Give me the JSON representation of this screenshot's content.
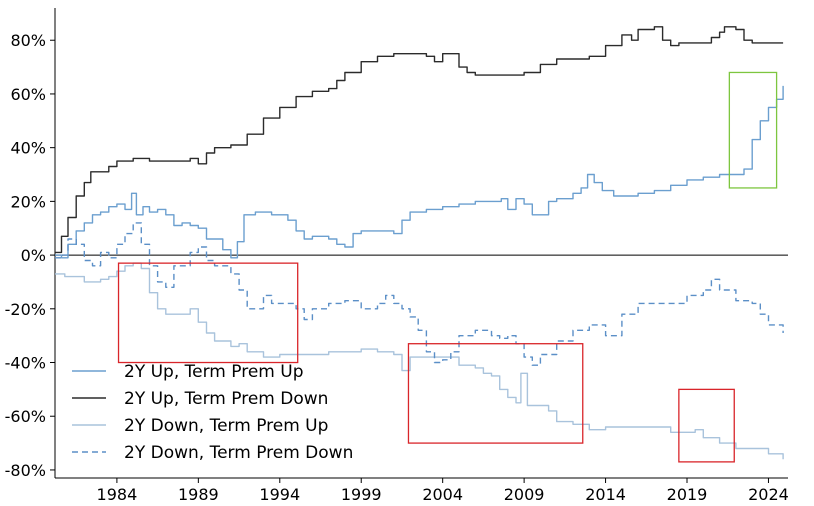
{
  "chart_data": {
    "type": "line",
    "title": "",
    "xlabel": "",
    "ylabel": "",
    "xlim": [
      1980.2,
      2025.2
    ],
    "ylim": [
      -83,
      92
    ],
    "x_ticks": [
      1984,
      1989,
      1994,
      1999,
      2004,
      2009,
      2014,
      2019,
      2024
    ],
    "y_ticks": [
      80,
      60,
      40,
      20,
      0,
      -20,
      -40,
      -60,
      -80
    ],
    "y_tick_labels": [
      "80%",
      "60%",
      "40%",
      "20%",
      "0%",
      "-20%",
      "-40%",
      "-60%",
      "-80%"
    ],
    "grid": false,
    "legend_position": "lower-left",
    "zero_line": 0,
    "series": [
      {
        "name": "2Y Up, Term Prem Up",
        "color": "#6b9fcf",
        "dash": "solid",
        "width": 1.4,
        "points": [
          [
            1980.2,
            0
          ],
          [
            1980.6,
            -1
          ],
          [
            1981,
            4
          ],
          [
            1981.5,
            9
          ],
          [
            1982,
            12
          ],
          [
            1982.5,
            15
          ],
          [
            1983,
            16
          ],
          [
            1983.5,
            18
          ],
          [
            1984,
            19
          ],
          [
            1984.5,
            17
          ],
          [
            1984.9,
            23
          ],
          [
            1985.2,
            15
          ],
          [
            1985.6,
            18
          ],
          [
            1986,
            16
          ],
          [
            1986.5,
            17
          ],
          [
            1987,
            15
          ],
          [
            1987.5,
            11
          ],
          [
            1988,
            12
          ],
          [
            1988.5,
            11
          ],
          [
            1989,
            10
          ],
          [
            1989.5,
            6
          ],
          [
            1990,
            6
          ],
          [
            1990.5,
            2
          ],
          [
            1991,
            -1
          ],
          [
            1991.4,
            5
          ],
          [
            1991.8,
            15
          ],
          [
            1992.5,
            16
          ],
          [
            1993.5,
            15
          ],
          [
            1994.5,
            13
          ],
          [
            1995,
            9
          ],
          [
            1995.5,
            6
          ],
          [
            1996,
            7
          ],
          [
            1997,
            6
          ],
          [
            1997.5,
            4
          ],
          [
            1998,
            3
          ],
          [
            1998.5,
            8
          ],
          [
            1999,
            9
          ],
          [
            2000,
            9
          ],
          [
            2001,
            8
          ],
          [
            2001.5,
            13
          ],
          [
            2002,
            16
          ],
          [
            2003,
            17
          ],
          [
            2004,
            18
          ],
          [
            2005,
            19
          ],
          [
            2006,
            20
          ],
          [
            2007,
            20
          ],
          [
            2007.6,
            21
          ],
          [
            2008,
            17
          ],
          [
            2008.5,
            21
          ],
          [
            2009,
            19
          ],
          [
            2009.5,
            15
          ],
          [
            2010,
            15
          ],
          [
            2010.5,
            20
          ],
          [
            2011,
            21
          ],
          [
            2012,
            23
          ],
          [
            2012.5,
            25
          ],
          [
            2012.9,
            30
          ],
          [
            2013.3,
            27
          ],
          [
            2013.8,
            24
          ],
          [
            2014.5,
            22
          ],
          [
            2015.5,
            22
          ],
          [
            2016,
            23
          ],
          [
            2017,
            24
          ],
          [
            2018,
            26
          ],
          [
            2019,
            28
          ],
          [
            2020,
            29
          ],
          [
            2021,
            30
          ],
          [
            2022,
            30
          ],
          [
            2022.5,
            32
          ],
          [
            2023,
            43
          ],
          [
            2023.5,
            50
          ],
          [
            2024,
            55
          ],
          [
            2024.5,
            58
          ],
          [
            2024.9,
            63
          ]
        ]
      },
      {
        "name": "2Y Up, Term Prem Down",
        "color": "#2b2b2b",
        "dash": "solid",
        "width": 1.4,
        "points": [
          [
            1980.2,
            1
          ],
          [
            1980.6,
            7
          ],
          [
            1981,
            14
          ],
          [
            1981.5,
            22
          ],
          [
            1982,
            27
          ],
          [
            1982.4,
            31
          ],
          [
            1983,
            31
          ],
          [
            1983.5,
            33
          ],
          [
            1984,
            35
          ],
          [
            1985,
            36
          ],
          [
            1986,
            35
          ],
          [
            1987,
            35
          ],
          [
            1988,
            35
          ],
          [
            1988.5,
            36
          ],
          [
            1989,
            34
          ],
          [
            1989.5,
            38
          ],
          [
            1990,
            40
          ],
          [
            1991,
            41
          ],
          [
            1992,
            45
          ],
          [
            1993,
            51
          ],
          [
            1994,
            55
          ],
          [
            1995,
            59
          ],
          [
            1996,
            61
          ],
          [
            1997,
            62
          ],
          [
            1997.5,
            65
          ],
          [
            1998,
            68
          ],
          [
            1999,
            72
          ],
          [
            2000,
            74
          ],
          [
            2001,
            75
          ],
          [
            2002,
            75
          ],
          [
            2003,
            74
          ],
          [
            2003.5,
            72
          ],
          [
            2004,
            75
          ],
          [
            2005,
            70
          ],
          [
            2005.5,
            68
          ],
          [
            2006,
            67
          ],
          [
            2007,
            67
          ],
          [
            2008,
            67
          ],
          [
            2009,
            68
          ],
          [
            2010,
            71
          ],
          [
            2011,
            73
          ],
          [
            2012,
            73
          ],
          [
            2013,
            74
          ],
          [
            2014,
            78
          ],
          [
            2015,
            82
          ],
          [
            2015.6,
            80
          ],
          [
            2016,
            84
          ],
          [
            2017,
            85
          ],
          [
            2017.5,
            80
          ],
          [
            2018,
            78
          ],
          [
            2018.5,
            79
          ],
          [
            2019,
            79
          ],
          [
            2020,
            79
          ],
          [
            2020.5,
            81
          ],
          [
            2021,
            83
          ],
          [
            2021.3,
            85
          ],
          [
            2022,
            84
          ],
          [
            2022.5,
            80
          ],
          [
            2023,
            79
          ],
          [
            2024,
            79
          ],
          [
            2024.9,
            79
          ]
        ]
      },
      {
        "name": "2Y Down, Term Prem Up",
        "color": "#a9c3dc",
        "dash": "solid",
        "width": 1.4,
        "points": [
          [
            1980.2,
            -7
          ],
          [
            1980.8,
            -8
          ],
          [
            1981.5,
            -8
          ],
          [
            1982,
            -10
          ],
          [
            1983,
            -9
          ],
          [
            1983.5,
            -8
          ],
          [
            1984,
            -6
          ],
          [
            1984.5,
            -4
          ],
          [
            1985,
            -3
          ],
          [
            1985.5,
            -5
          ],
          [
            1986,
            -14
          ],
          [
            1986.5,
            -20
          ],
          [
            1987,
            -22
          ],
          [
            1988,
            -22
          ],
          [
            1988.5,
            -20
          ],
          [
            1989,
            -25
          ],
          [
            1989.5,
            -29
          ],
          [
            1990,
            -32
          ],
          [
            1991,
            -34
          ],
          [
            1991.5,
            -33
          ],
          [
            1992,
            -36
          ],
          [
            1993,
            -38
          ],
          [
            1994,
            -37
          ],
          [
            1995,
            -37
          ],
          [
            1996,
            -37
          ],
          [
            1997,
            -36
          ],
          [
            1998,
            -36
          ],
          [
            1999,
            -35
          ],
          [
            2000,
            -36
          ],
          [
            2001,
            -37
          ],
          [
            2001.5,
            -43
          ],
          [
            2002,
            -38
          ],
          [
            2003,
            -38
          ],
          [
            2004,
            -38
          ],
          [
            2005,
            -41
          ],
          [
            2006,
            -42
          ],
          [
            2006.5,
            -44
          ],
          [
            2007,
            -45
          ],
          [
            2007.5,
            -50
          ],
          [
            2008,
            -53
          ],
          [
            2008.5,
            -55
          ],
          [
            2008.8,
            -44
          ],
          [
            2009.2,
            -56
          ],
          [
            2010,
            -56
          ],
          [
            2010.5,
            -58
          ],
          [
            2011,
            -62
          ],
          [
            2012,
            -63
          ],
          [
            2013,
            -65
          ],
          [
            2014,
            -64
          ],
          [
            2015,
            -64
          ],
          [
            2016,
            -64
          ],
          [
            2017,
            -64
          ],
          [
            2018,
            -66
          ],
          [
            2019,
            -66
          ],
          [
            2019.5,
            -65
          ],
          [
            2020,
            -68
          ],
          [
            2021,
            -70
          ],
          [
            2022,
            -72
          ],
          [
            2023,
            -72
          ],
          [
            2024,
            -74
          ],
          [
            2024.9,
            -76
          ]
        ]
      },
      {
        "name": "2Y Down, Term Prem Down",
        "color": "#5b8fc7",
        "dash": "6,4",
        "width": 1.4,
        "points": [
          [
            1980.2,
            -1
          ],
          [
            1980.6,
            0
          ],
          [
            1981,
            6
          ],
          [
            1981.5,
            4
          ],
          [
            1982,
            -2
          ],
          [
            1982.5,
            -4
          ],
          [
            1983,
            1
          ],
          [
            1983.5,
            -1
          ],
          [
            1984,
            4
          ],
          [
            1984.5,
            8
          ],
          [
            1985,
            12
          ],
          [
            1985.5,
            4
          ],
          [
            1986,
            -4
          ],
          [
            1986.5,
            -10
          ],
          [
            1987,
            -12
          ],
          [
            1987.5,
            -4
          ],
          [
            1988,
            -4
          ],
          [
            1988.5,
            1
          ],
          [
            1989,
            3
          ],
          [
            1989.5,
            -2
          ],
          [
            1990,
            -4
          ],
          [
            1990.5,
            -4
          ],
          [
            1991,
            -7
          ],
          [
            1991.5,
            -13
          ],
          [
            1992,
            -20
          ],
          [
            1992.5,
            -20
          ],
          [
            1993,
            -15
          ],
          [
            1993.5,
            -18
          ],
          [
            1994,
            -18
          ],
          [
            1995,
            -20
          ],
          [
            1995.5,
            -24
          ],
          [
            1996,
            -20
          ],
          [
            1997,
            -18
          ],
          [
            1998,
            -17
          ],
          [
            1999,
            -20
          ],
          [
            2000,
            -18
          ],
          [
            2000.5,
            -15
          ],
          [
            2001,
            -18
          ],
          [
            2001.5,
            -20
          ],
          [
            2002,
            -23
          ],
          [
            2002.5,
            -28
          ],
          [
            2003,
            -36
          ],
          [
            2003.5,
            -40
          ],
          [
            2004,
            -39
          ],
          [
            2004.5,
            -36
          ],
          [
            2005,
            -30
          ],
          [
            2006,
            -28
          ],
          [
            2007,
            -30
          ],
          [
            2007.5,
            -31
          ],
          [
            2008,
            -30
          ],
          [
            2008.5,
            -33
          ],
          [
            2009,
            -38
          ],
          [
            2009.5,
            -41
          ],
          [
            2010,
            -37
          ],
          [
            2011,
            -32
          ],
          [
            2012,
            -28
          ],
          [
            2013,
            -26
          ],
          [
            2014,
            -30
          ],
          [
            2015,
            -22
          ],
          [
            2016,
            -18
          ],
          [
            2017,
            -18
          ],
          [
            2018,
            -18
          ],
          [
            2019,
            -15
          ],
          [
            2020,
            -13
          ],
          [
            2020.5,
            -9
          ],
          [
            2021,
            -13
          ],
          [
            2022,
            -17
          ],
          [
            2023,
            -18
          ],
          [
            2023.5,
            -22
          ],
          [
            2024,
            -26
          ],
          [
            2024.9,
            -29
          ]
        ]
      }
    ],
    "annotations": [
      {
        "shape": "rectangle",
        "color": "#7dc63f",
        "x0": 2021.6,
        "x1": 2024.5,
        "y0": 25,
        "y1": 68
      },
      {
        "shape": "rectangle",
        "color": "#d9252a",
        "x0": 1984.1,
        "x1": 1995.1,
        "y0": -40,
        "y1": -3
      },
      {
        "shape": "rectangle",
        "color": "#d9252a",
        "x0": 2001.9,
        "x1": 2012.6,
        "y0": -70,
        "y1": -33
      },
      {
        "shape": "rectangle",
        "color": "#d9252a",
        "x0": 2018.5,
        "x1": 2021.9,
        "y0": -77,
        "y1": -50
      }
    ]
  }
}
